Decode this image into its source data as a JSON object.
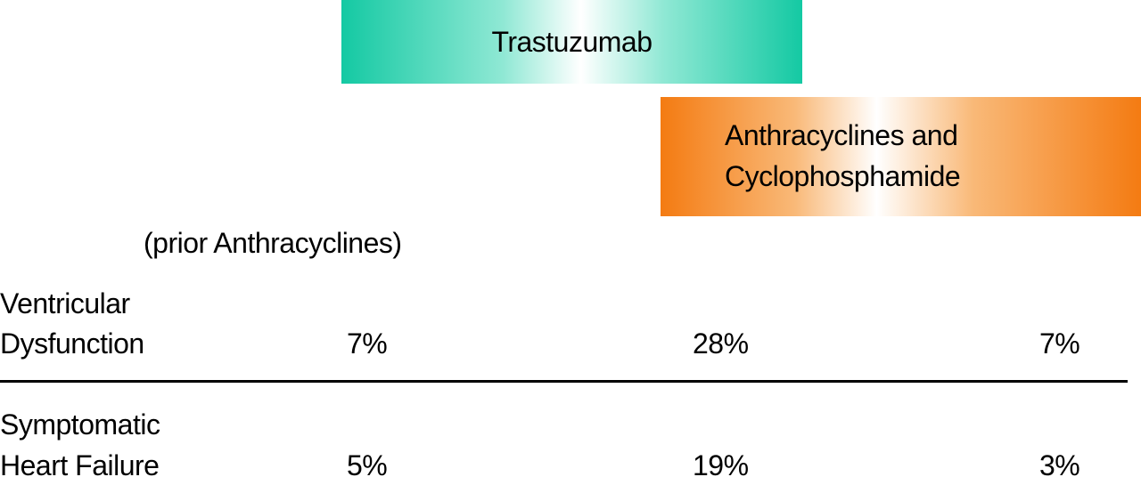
{
  "bands": {
    "trastuzumab": {
      "label": "Trastuzumab",
      "color": "#14c9a3"
    },
    "anthracyclines": {
      "line1": "Anthracyclines and",
      "line2": "Cyclophosphamide",
      "color": "#f47b12"
    }
  },
  "column_note": "(prior Anthracyclines)",
  "rows": [
    {
      "label_line1": "Ventricular",
      "label_line2": "Dysfunction",
      "values": [
        "7%",
        "28%",
        "7%"
      ]
    },
    {
      "label_line1": "Symptomatic",
      "label_line2": "Heart Failure",
      "values": [
        "5%",
        "19%",
        "3%"
      ]
    }
  ]
}
